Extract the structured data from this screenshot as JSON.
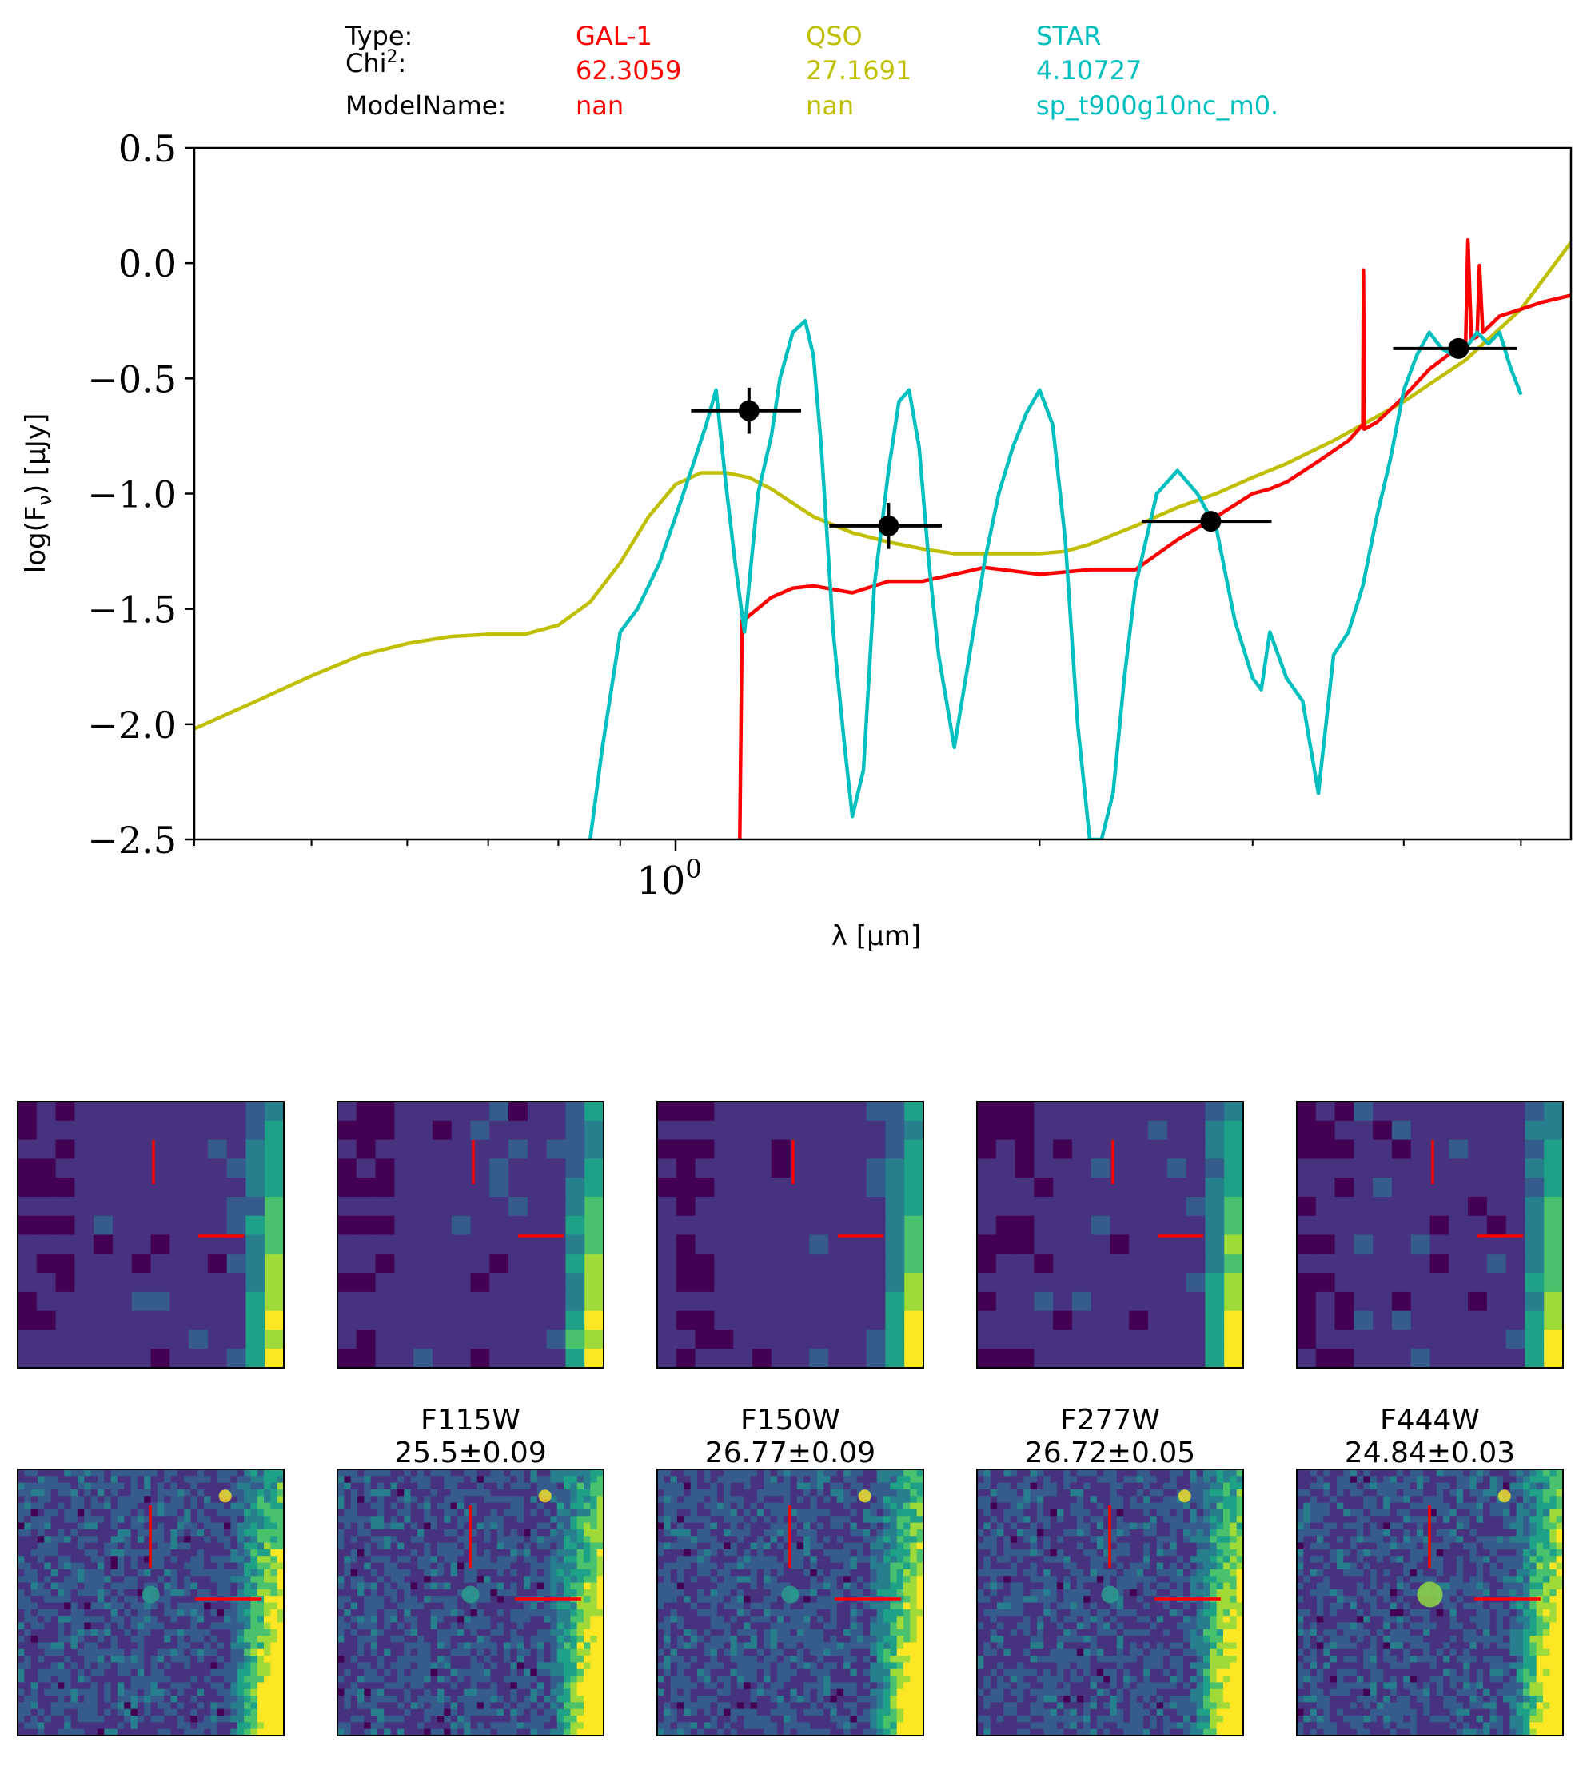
{
  "header": {
    "row_labels": [
      "Type:",
      "Chi",
      "ModelName:"
    ],
    "chi_superscript": "2",
    "chi_suffix": ":",
    "columns": [
      {
        "type": "GAL-1",
        "chi2": "62.3059",
        "model": "nan",
        "color": "#ff0000"
      },
      {
        "type": "QSO",
        "chi2": "27.1691",
        "model": "nan",
        "color": "#bfbf00"
      },
      {
        "type": "STAR",
        "chi2": "4.10727",
        "model": "sp_t900g10nc_m0.",
        "color": "#00bfbf"
      }
    ]
  },
  "chart_data": {
    "type": "line",
    "xlabel": "λ [μm]",
    "ylabel": "log(F_ν) [μJy]",
    "xscale": "log",
    "xlim": [
      0.4,
      5.5
    ],
    "ylim": [
      -2.5,
      0.5
    ],
    "yticks": [
      "0.5",
      "0.0",
      "−0.5",
      "−1.0",
      "−1.5",
      "−2.0",
      "−2.5"
    ],
    "xtick_major": {
      "base": "10",
      "exponent": "0",
      "value": 1.0
    },
    "grid": false,
    "legend": "none",
    "series": [
      {
        "color": "#bfbf00",
        "x": [
          0.4,
          0.45,
          0.5,
          0.55,
          0.6,
          0.65,
          0.7,
          0.75,
          0.8,
          0.85,
          0.9,
          0.95,
          1.0,
          1.05,
          1.1,
          1.15,
          1.2,
          1.3,
          1.4,
          1.5,
          1.6,
          1.7,
          1.8,
          1.9,
          2.0,
          2.1,
          2.2,
          2.4,
          2.6,
          2.8,
          3.0,
          3.2,
          3.5,
          4.0,
          4.5,
          5.0,
          5.5
        ],
        "y": [
          -2.02,
          -1.9,
          -1.79,
          -1.7,
          -1.65,
          -1.62,
          -1.61,
          -1.61,
          -1.57,
          -1.47,
          -1.3,
          -1.1,
          -0.96,
          -0.91,
          -0.91,
          -0.93,
          -0.98,
          -1.1,
          -1.17,
          -1.21,
          -1.24,
          -1.26,
          -1.26,
          -1.26,
          -1.26,
          -1.25,
          -1.22,
          -1.14,
          -1.06,
          -1.0,
          -0.93,
          -0.87,
          -0.77,
          -0.6,
          -0.42,
          -0.2,
          0.09
        ]
      },
      {
        "color": "#ff0000",
        "x": [
          1.13,
          1.135,
          1.14,
          1.15,
          1.2,
          1.25,
          1.3,
          1.4,
          1.5,
          1.6,
          1.7,
          1.8,
          2.0,
          2.2,
          2.4,
          2.6,
          2.8,
          3.0,
          3.1,
          3.2,
          3.4,
          3.6,
          3.7,
          3.705,
          3.71,
          3.8,
          4.0,
          4.2,
          4.4,
          4.5,
          4.52,
          4.55,
          4.6,
          4.62,
          4.65,
          4.8,
          5.0,
          5.2,
          5.5
        ],
        "y": [
          -2.5,
          -1.55,
          -1.55,
          -1.53,
          -1.45,
          -1.41,
          -1.4,
          -1.43,
          -1.38,
          -1.38,
          -1.35,
          -1.32,
          -1.35,
          -1.33,
          -1.33,
          -1.2,
          -1.1,
          -1.0,
          -0.98,
          -0.95,
          -0.86,
          -0.77,
          -0.7,
          -0.03,
          -0.72,
          -0.69,
          -0.58,
          -0.46,
          -0.38,
          -0.35,
          0.1,
          -0.33,
          -0.32,
          -0.01,
          -0.3,
          -0.23,
          -0.2,
          -0.17,
          -0.14
        ]
      },
      {
        "color": "#00bfbf",
        "x": [
          0.85,
          0.87,
          0.9,
          0.93,
          0.95,
          0.97,
          1.0,
          1.03,
          1.06,
          1.08,
          1.1,
          1.12,
          1.14,
          1.17,
          1.2,
          1.22,
          1.25,
          1.28,
          1.3,
          1.32,
          1.35,
          1.38,
          1.4,
          1.43,
          1.46,
          1.5,
          1.53,
          1.56,
          1.59,
          1.62,
          1.65,
          1.7,
          1.75,
          1.8,
          1.85,
          1.9,
          1.95,
          2.0,
          2.05,
          2.1,
          2.15,
          2.2,
          2.25,
          2.3,
          2.35,
          2.4,
          2.5,
          2.6,
          2.7,
          2.8,
          2.9,
          3.0,
          3.05,
          3.1,
          3.2,
          3.3,
          3.4,
          3.5,
          3.6,
          3.7,
          3.8,
          3.9,
          4.0,
          4.1,
          4.2,
          4.3,
          4.4,
          4.5,
          4.6,
          4.7,
          4.8,
          4.9,
          5.0
        ],
        "y": [
          -2.5,
          -2.1,
          -1.6,
          -1.5,
          -1.4,
          -1.3,
          -1.1,
          -0.9,
          -0.7,
          -0.55,
          -0.95,
          -1.3,
          -1.6,
          -1.0,
          -0.75,
          -0.5,
          -0.3,
          -0.25,
          -0.4,
          -0.8,
          -1.6,
          -2.1,
          -2.4,
          -2.2,
          -1.4,
          -0.9,
          -0.6,
          -0.55,
          -0.8,
          -1.3,
          -1.7,
          -2.1,
          -1.7,
          -1.3,
          -1.0,
          -0.8,
          -0.65,
          -0.55,
          -0.7,
          -1.2,
          -2.0,
          -2.5,
          -2.5,
          -2.3,
          -1.8,
          -1.4,
          -1.0,
          -0.9,
          -1.0,
          -1.15,
          -1.55,
          -1.8,
          -1.85,
          -1.6,
          -1.8,
          -1.9,
          -2.3,
          -1.7,
          -1.6,
          -1.4,
          -1.1,
          -0.85,
          -0.55,
          -0.4,
          -0.3,
          -0.37,
          -0.4,
          -0.37,
          -0.3,
          -0.35,
          -0.3,
          -0.45,
          -0.57
        ]
      },
      {
        "color": "#000000",
        "role": "photometry",
        "x": [
          1.15,
          1.5,
          2.77,
          4.44
        ],
        "xerr_low": [
          0.12,
          0.16,
          0.34,
          0.52
        ],
        "xerr_high": [
          0.12,
          0.16,
          0.34,
          0.52
        ],
        "y": [
          -0.64,
          -1.14,
          -1.12,
          -0.37
        ],
        "yerr": [
          0.1,
          0.1,
          0.04,
          0.03
        ]
      }
    ]
  },
  "cutouts": {
    "filters": [
      {
        "filter": "F115W",
        "mag": "25.5±0.09"
      },
      {
        "filter": "F150W",
        "mag": "26.77±0.09"
      },
      {
        "filter": "F277W",
        "mag": "26.72±0.05"
      },
      {
        "filter": "F444W",
        "mag": "24.84±0.03"
      }
    ]
  }
}
